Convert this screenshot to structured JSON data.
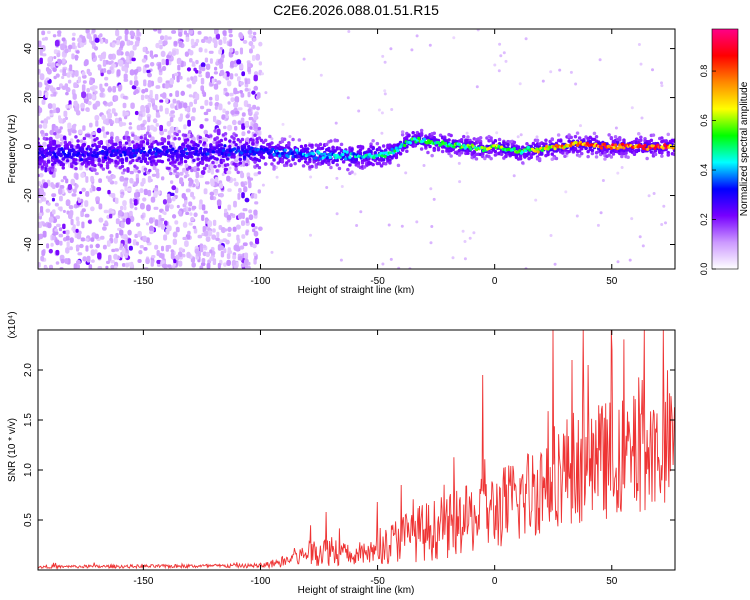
{
  "figure_title": "C2E6.2026.088.01.51.R15",
  "chart_data": [
    {
      "type": "heatmap",
      "title": "C2E6.2026.088.01.51.R15",
      "xlabel": "Height of straight line (km)",
      "ylabel": "Frequency (Hz)",
      "xlim": [
        -195,
        77
      ],
      "ylim": [
        -50,
        48
      ],
      "xticks": [
        -150,
        -100,
        -50,
        0,
        50
      ],
      "yticks": [
        -40,
        -20,
        0,
        20,
        40
      ],
      "colorbar": {
        "label": "Normalized spectral amplitude",
        "range": [
          0,
          0.97
        ],
        "ticks": [
          "0.0",
          "0.2",
          "0.4",
          "0.6",
          "0.8"
        ],
        "colors": [
          "#ffffff",
          "#cc99ff",
          "#7700ff",
          "#0000ff",
          "#00ffff",
          "#00ff00",
          "#ffff00",
          "#ff8800",
          "#ff0000",
          "#ff0088"
        ]
      },
      "ridge": {
        "description": "dominant narrow-band line near 0 Hz",
        "height_km": [
          -195,
          -100,
          -85,
          -60,
          -45,
          -35,
          -20,
          -5,
          0,
          10,
          20,
          35,
          50,
          77
        ],
        "frequency_hz": [
          -3,
          -2,
          -3,
          -4,
          -3,
          3,
          1,
          -1,
          0,
          -2,
          -1,
          1,
          0,
          0
        ],
        "amplitude": [
          0.3,
          0.35,
          0.4,
          0.45,
          0.5,
          0.55,
          0.55,
          0.6,
          0.7,
          0.55,
          0.7,
          0.85,
          0.9,
          0.9
        ]
      }
    },
    {
      "type": "line",
      "xlabel": "Height of straight line (km)",
      "ylabel": "SNR (10 * v/v)",
      "y_multiplier": "(x10⁴)",
      "xlim": [
        -195,
        77
      ],
      "ylim": [
        0,
        24000
      ],
      "xticks": [
        -150,
        -100,
        -50,
        0,
        50
      ],
      "yticks": [
        5000,
        10000,
        15000,
        20000
      ],
      "ytick_labels": [
        "0.5",
        "1.0",
        "1.5",
        "2.0"
      ],
      "series": [
        {
          "name": "SNR",
          "color": "#ee3333",
          "envelope_x": [
            -195,
            -100,
            -90,
            -80,
            -70,
            -60,
            -50,
            -40,
            -30,
            -20,
            -10,
            0,
            10,
            20,
            30,
            40,
            50,
            60,
            77
          ],
          "envelope_mean": [
            300,
            400,
            800,
            1500,
            2000,
            1200,
            1800,
            3000,
            3500,
            4000,
            4800,
            5500,
            6500,
            8000,
            9500,
            10000,
            10500,
            11000,
            12000
          ],
          "envelope_spread": [
            150,
            200,
            600,
            1200,
            1800,
            800,
            1500,
            2500,
            3000,
            3200,
            3500,
            4000,
            4500,
            5000,
            5500,
            6000,
            6000,
            6000,
            5500
          ],
          "peaks": [
            {
              "x": -72,
              "y": 5800
            },
            {
              "x": -50,
              "y": 6800
            },
            {
              "x": -40,
              "y": 8500
            },
            {
              "x": -5,
              "y": 19500
            },
            {
              "x": 25,
              "y": 24000
            },
            {
              "x": 33,
              "y": 21000
            },
            {
              "x": 40,
              "y": 20500
            },
            {
              "x": 50,
              "y": 22000
            },
            {
              "x": 63,
              "y": 19000
            }
          ]
        }
      ]
    }
  ]
}
